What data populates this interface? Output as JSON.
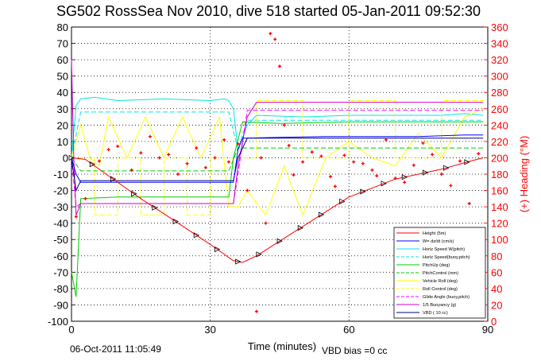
{
  "chart_data": {
    "type": "line",
    "title": "SG502 RossSea Nov 2010, dive 518 started 05-Jan-2011 09:52:30",
    "xlabel": "Time (minutes)",
    "ylabel": "",
    "ylabel_right": "(+) Heading (°M)",
    "xlim": [
      0,
      90
    ],
    "ylim": [
      -100,
      80
    ],
    "ylim_right": [
      0,
      360
    ],
    "xticks": [
      "0",
      "30",
      "60",
      "90"
    ],
    "yticks": [
      "80",
      "70",
      "60",
      "50",
      "40",
      "30",
      "20",
      "10",
      "0",
      "-10",
      "-20",
      "-30",
      "-40",
      "-50",
      "-60",
      "-70",
      "-80",
      "-90",
      "-100"
    ],
    "yticks_right": [
      "360",
      "340",
      "320",
      "300",
      "280",
      "260",
      "240",
      "220",
      "200",
      "180",
      "160",
      "140",
      "120",
      "100",
      "80",
      "60",
      "40",
      "20",
      "0"
    ],
    "grid": true,
    "legend_position": "bottom-right",
    "colors": {
      "height": "#ff0000",
      "w": "#0000ff",
      "horiz_speed": "#00e5e5",
      "horiz_speed_buoy": "#00e5e5",
      "pitchup": "#00cc00",
      "pitch_control": "#00cc00",
      "vehicle_roll": "#ffff00",
      "roll_control": "#ffff00",
      "glide_angle": "#ff00ff",
      "buoyancy": "#cc00cc",
      "vbd": "#000080",
      "heading": "#ff0000"
    },
    "series": [
      {
        "name": "Height (5m)",
        "key": "height",
        "dash": "solid",
        "x": [
          0,
          3,
          8,
          15,
          22,
          30,
          35,
          37,
          40,
          50,
          60,
          70,
          80,
          85,
          89
        ],
        "y": [
          0,
          -1,
          -11,
          -25,
          -38,
          -53,
          -63,
          -64,
          -60,
          -42,
          -24,
          -13,
          -7,
          -3,
          0
        ]
      },
      {
        "name": "W= dz/dt (cm/s)",
        "key": "w",
        "dash": "solid",
        "x": [
          0,
          1,
          2,
          35,
          36,
          37,
          45,
          55,
          65,
          75,
          85,
          89
        ],
        "y": [
          0,
          -10,
          -15,
          -15,
          5,
          12,
          12.5,
          13,
          13,
          13,
          14,
          14
        ]
      },
      {
        "name": "Horiz Speed W(pitch)",
        "key": "horiz_speed",
        "dash": "solid",
        "x": [
          0,
          1,
          2,
          5,
          10,
          20,
          30,
          33,
          34,
          35,
          36,
          38,
          40,
          50,
          60,
          70,
          80,
          85,
          89
        ],
        "y": [
          0,
          32,
          36,
          37,
          35,
          36,
          35,
          36,
          35,
          30,
          5,
          20,
          26,
          25,
          26,
          26,
          26,
          27,
          26
        ]
      },
      {
        "name": "Horiz Speed(buoy,pitch)",
        "key": "horiz_speed_buoy",
        "dash": "dashed",
        "x": [
          0,
          2,
          10,
          20,
          30,
          34,
          36,
          38,
          50,
          70,
          89
        ],
        "y": [
          0,
          28,
          28,
          28,
          28,
          28,
          5,
          23,
          23,
          23,
          23
        ]
      },
      {
        "name": "PitchUp (deg)",
        "key": "pitchup",
        "dash": "solid",
        "x": [
          0,
          1,
          2,
          10,
          20,
          34,
          35,
          37,
          45,
          60,
          75,
          89
        ],
        "y": [
          -70,
          -85,
          -25,
          -24,
          -24,
          -24,
          0,
          22,
          21,
          22,
          22,
          22
        ]
      },
      {
        "name": "PitchControl (mm)",
        "key": "pitch_control",
        "dash": "dashed",
        "x": [
          0,
          2,
          10,
          20,
          34,
          36,
          40,
          60,
          89
        ],
        "y": [
          0,
          -8,
          -8,
          -8,
          -8,
          6,
          6,
          6,
          6
        ]
      },
      {
        "name": "Vehicle Roll (deg)",
        "key": "vehicle_roll",
        "dash": "solid",
        "x": [
          0,
          2,
          4,
          6,
          8,
          12,
          16,
          20,
          24,
          28,
          32,
          34,
          36,
          38,
          42,
          46,
          50,
          55,
          60,
          65,
          70,
          75,
          80,
          85,
          89
        ],
        "y": [
          0,
          20,
          0,
          -5,
          25,
          0,
          25,
          0,
          25,
          0,
          25,
          -30,
          -30,
          -20,
          -35,
          -5,
          -35,
          0,
          10,
          0,
          -5,
          15,
          0,
          25,
          30
        ]
      },
      {
        "name": "Roll Control (deg)",
        "key": "roll_control",
        "dash": "dashed",
        "x": [
          0,
          5,
          5,
          10,
          10,
          15,
          15,
          20,
          20,
          25,
          25,
          30,
          30,
          34,
          36,
          40,
          40,
          50,
          50,
          60,
          60,
          70,
          70,
          80,
          80,
          89
        ],
        "y": [
          0,
          0,
          -35,
          -35,
          0,
          0,
          -35,
          -35,
          0,
          0,
          -35,
          -35,
          0,
          0,
          0,
          0,
          35,
          35,
          0,
          0,
          35,
          35,
          0,
          0,
          35,
          35
        ]
      },
      {
        "name": "Glide Angle (buoy,pitch)",
        "key": "glide_angle",
        "dash": "dashed",
        "x": [
          0,
          1,
          2,
          35,
          36,
          38,
          60,
          89
        ],
        "y": [
          0,
          -30,
          -28,
          -28,
          -10,
          29,
          29,
          29
        ]
      },
      {
        "name": "1/5 Buoyancy (g)",
        "key": "buoyancy",
        "dash": "solid",
        "x": [
          0,
          0.5,
          1,
          2,
          35,
          36,
          38,
          40,
          60,
          89
        ],
        "y": [
          60,
          0,
          -35,
          -28,
          -28,
          -5,
          25,
          34,
          34,
          34
        ]
      },
      {
        "name": "VBD ( 10 cc)",
        "key": "vbd",
        "dash": "solid",
        "x": [
          0,
          1,
          2,
          35,
          36,
          38,
          60,
          89
        ],
        "y": [
          0,
          -20,
          -14,
          -14,
          0,
          12,
          12,
          12
        ]
      }
    ],
    "heading_series": {
      "name": "(+) Heading (°M)",
      "x": [
        1,
        3,
        6,
        8,
        10,
        13,
        15,
        17,
        19,
        21,
        23,
        25,
        27,
        29,
        31,
        33,
        34,
        36,
        38,
        40,
        41,
        42,
        43,
        44,
        45,
        46,
        47,
        48,
        50,
        52,
        54,
        56,
        57,
        59,
        61,
        63,
        65,
        66,
        68,
        70,
        72,
        74,
        76,
        78,
        80,
        82,
        84,
        86,
        88
      ],
      "y": [
        128,
        150,
        196,
        210,
        214,
        185,
        206,
        226,
        200,
        204,
        180,
        193,
        212,
        188,
        200,
        222,
        195,
        217,
        160,
        12,
        200,
        120,
        352,
        345,
        312,
        240,
        215,
        179,
        195,
        207,
        202,
        177,
        165,
        203,
        195,
        193,
        185,
        178,
        222,
        175,
        170,
        191,
        218,
        204,
        180,
        166,
        196,
        144,
        205
      ]
    }
  },
  "legend": {
    "items": [
      "Height (5m)",
      "W= dz/dt (cm/s)",
      "Horiz Speed W(pitch)",
      "Horiz Speed(buoy,pitch)",
      "PitchUp (deg)",
      "PitchControl (mm)",
      "Vehicle Roll (deg)",
      "Roll Control (deg)",
      "Glide Angle (buoy,pitch)",
      "1/5 Buoyancy (g)",
      "VBD ( 10 cc)"
    ]
  },
  "footer": {
    "date": "06-Oct-2011 11:05:49",
    "vbd_bias": "VBD bias =0 cc"
  }
}
